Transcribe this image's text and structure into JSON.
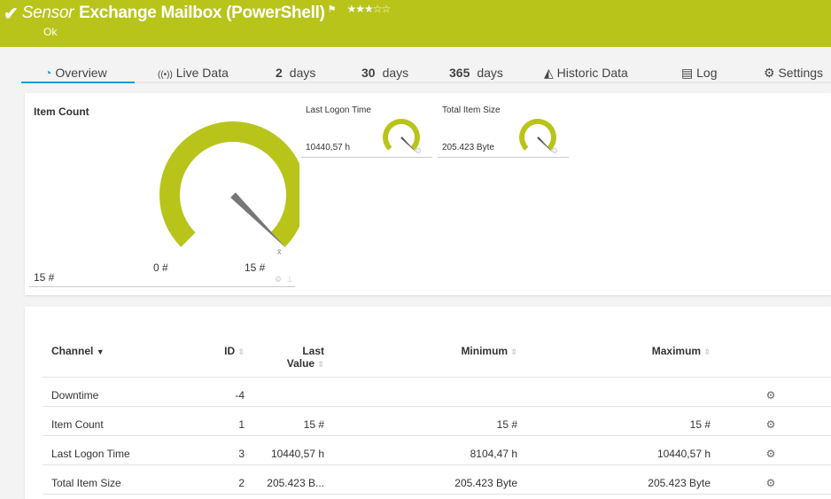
{
  "header": {
    "title_prefix": "Sensor",
    "title": "Exchange Mailbox (PowerShell)",
    "status": "Ok",
    "stars": "★★★☆☆",
    "priority_stars": 3,
    "color": "#b9c41b"
  },
  "tabs": [
    {
      "label": "Overview",
      "icon": "gauge-icon"
    },
    {
      "label": "Live Data",
      "icon": "broadcast-icon"
    },
    {
      "num": "2",
      "label": "days"
    },
    {
      "num": "30",
      "label": "days"
    },
    {
      "num": "365",
      "label": "days"
    },
    {
      "label": "Historic Data",
      "icon": "area-chart-icon"
    },
    {
      "label": "Log",
      "icon": "list-icon"
    },
    {
      "label": "Settings",
      "icon": "gear-icon"
    }
  ],
  "gauges": {
    "main": {
      "title": "Item Count",
      "value": "15 #",
      "min_label": "0 #",
      "max_label": "15 #",
      "fraction": 1.0
    },
    "small": [
      {
        "title": "Last Logon Time",
        "value": "10440,57 h",
        "fraction": 1.0
      },
      {
        "title": "Total Item Size",
        "value": "205.423 Byte",
        "fraction": 1.0
      }
    ]
  },
  "table": {
    "headers": [
      "Channel",
      "ID",
      "Last",
      "Value",
      "Minimum",
      "Maximum"
    ],
    "rows": [
      [
        "Downtime",
        "-4",
        "",
        "",
        ""
      ],
      [
        "Item Count",
        "1",
        "15 #",
        "15 #",
        "15 #"
      ],
      [
        "Last Logon Time",
        "3",
        "10440,57 h",
        "8104,47 h",
        "10440,57 h"
      ],
      [
        "Total Item Size",
        "2",
        "205.423 B...",
        "205.423 Byte",
        "205.423 Byte"
      ]
    ]
  }
}
